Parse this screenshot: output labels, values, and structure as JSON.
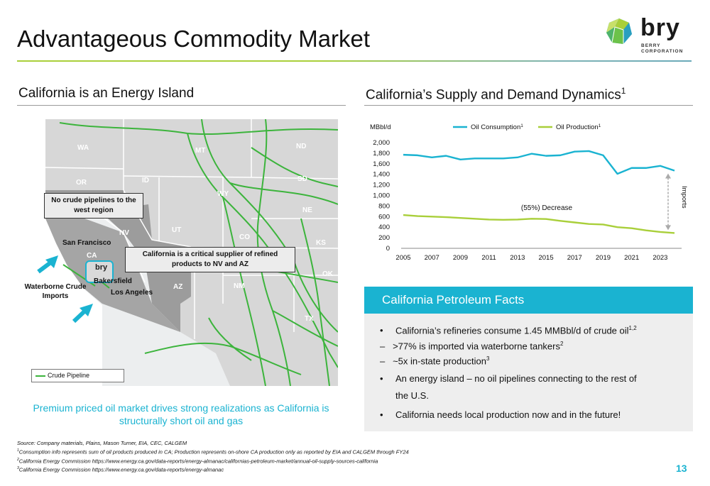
{
  "header": {
    "title": "Advantageous Commodity Market",
    "logo": {
      "wordmark": "bry",
      "subtext_line1": "BERRY",
      "subtext_line2": "CORPORATION"
    }
  },
  "left_section": {
    "heading": "California is an Energy Island",
    "map": {
      "state_labels": [
        "WA",
        "OR",
        "ID",
        "MT",
        "ND",
        "SD",
        "WY",
        "NE",
        "NV",
        "UT",
        "CO",
        "CA",
        "AZ",
        "NM",
        "KS",
        "OK",
        "TX"
      ],
      "city_labels": {
        "san_francisco": "San Francisco",
        "bakersfield": "Bakersfield",
        "los_angeles": "Los Angeles"
      },
      "waterborne": "Waterborne Crude Imports",
      "callout_pipelines": "No crude pipelines to the west region",
      "callout_supplier": "California is a critical supplier of refined products to NV and AZ",
      "legend": "Crude Pipeline",
      "marker_logo": "bry",
      "colors": {
        "pipeline": "#3cb43c",
        "arrow": "#1ab3d1",
        "west_region": "#9c9c9c",
        "other_states": "#d7d7d7"
      }
    },
    "tagline": "Premium priced oil market drives strong realizations as California is structurally short oil and gas"
  },
  "right_section": {
    "heading": "California’s Supply and Demand Dynamics",
    "heading_sup": "1"
  },
  "chart_data": {
    "type": "line",
    "title": "",
    "ylabel": "MBbl/d",
    "xlabel": "",
    "x": [
      2005,
      2006,
      2007,
      2008,
      2009,
      2010,
      2011,
      2012,
      2013,
      2014,
      2015,
      2016,
      2017,
      2018,
      2019,
      2020,
      2021,
      2022,
      2023,
      2024
    ],
    "x_ticks": [
      "2005",
      "2007",
      "2009",
      "2011",
      "2013",
      "2015",
      "2017",
      "2019",
      "2021",
      "2023"
    ],
    "y_ticks": [
      "0",
      "200",
      "400",
      "600",
      "800",
      "1,000",
      "1,200",
      "1,400",
      "1,600",
      "1,800",
      "2,000"
    ],
    "ylim": [
      0,
      2000
    ],
    "series": [
      {
        "name": "Oil Consumption",
        "name_sup": "1",
        "color": "#1ab3d1",
        "values": [
          1770,
          1760,
          1720,
          1750,
          1680,
          1700,
          1700,
          1700,
          1720,
          1790,
          1750,
          1760,
          1830,
          1840,
          1760,
          1410,
          1520,
          1520,
          1560,
          1470
        ]
      },
      {
        "name": "Oil Production",
        "name_sup": "1",
        "color": "#a9cf3a",
        "values": [
          630,
          610,
          600,
          590,
          575,
          560,
          545,
          540,
          545,
          560,
          555,
          520,
          490,
          460,
          450,
          400,
          380,
          340,
          310,
          290
        ]
      }
    ],
    "annotations": [
      "(55%) Decrease",
      "Imports"
    ],
    "legend_position": "top",
    "grid": false
  },
  "facts": {
    "title": "California Petroleum Facts",
    "items": [
      {
        "text": "California’s refineries consume 1.45 MMBbl/d of crude oil",
        "sup": "1,2"
      },
      {
        "text": "–   >77% is imported via waterborne tankers",
        "sup": "2"
      },
      {
        "text": "–   ~5x in-state production",
        "sup": "3"
      },
      {
        "text": "An energy island – no oil pipelines connecting to the rest of",
        "sup": ""
      },
      {
        "text": "the U.S.",
        "sup": ""
      },
      {
        "text": "California needs local production now and in the future!",
        "sup": ""
      }
    ]
  },
  "footnotes": {
    "source": "Source: Company materials, Plains, Mason Turner, EIA, CEC, CALGEM",
    "note1": "Consumption info represents sum of oil products produced in CA; Production represents on-shore CA production only as reported by EIA and CALGEM through FY24",
    "note2": "California Energy Commission https://www.energy.ca.gov/data-reports/energy-almanac/californias-petroleum-market/annual-oil-supply-sources-california",
    "note3": "California Energy Commission https://www.energy.ca.gov/data-reports/energy-almanac"
  },
  "page_number": "13"
}
